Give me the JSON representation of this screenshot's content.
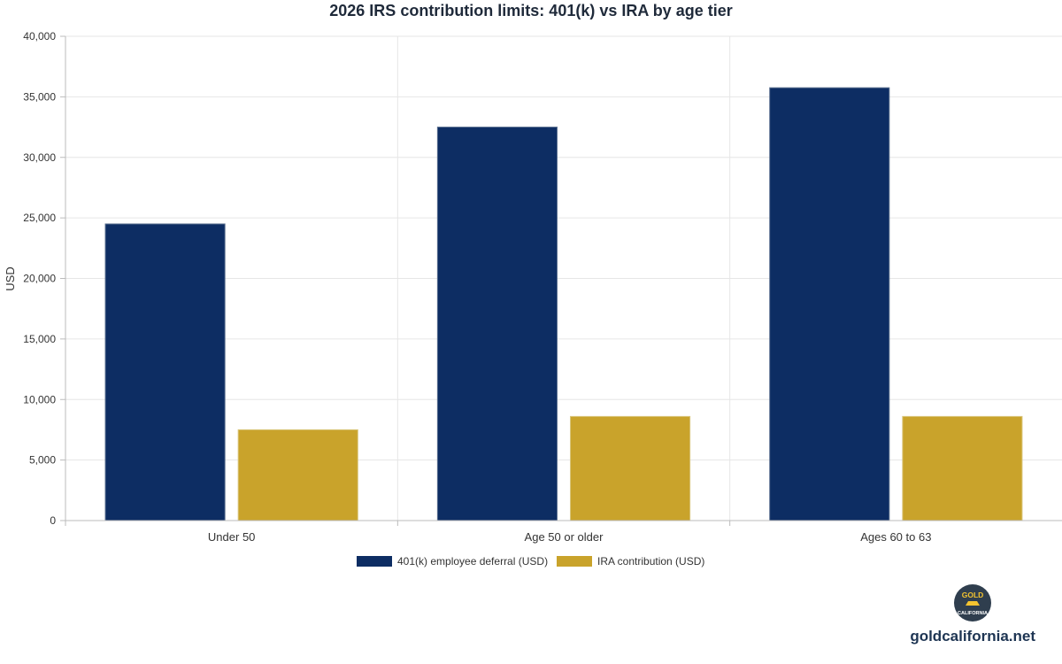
{
  "chart_data": {
    "type": "bar",
    "title": "2026 IRS contribution limits: 401(k) vs IRA by age tier",
    "xlabel": "",
    "ylabel": "USD",
    "categories": [
      "Under 50",
      "Age 50 or older",
      "Ages 60 to 63"
    ],
    "series": [
      {
        "name": "401(k) employee deferral (USD)",
        "values": [
          24500,
          32500,
          35750
        ],
        "color": "#0d2d63"
      },
      {
        "name": "IRA contribution (USD)",
        "values": [
          7500,
          8600,
          8600
        ],
        "color": "#c9a32b"
      }
    ],
    "ylim": [
      0,
      40000
    ],
    "yticks": [
      0,
      5000,
      10000,
      15000,
      20000,
      25000,
      30000,
      35000,
      40000
    ],
    "ytick_labels": [
      "0",
      "5,000",
      "10,000",
      "15,000",
      "20,000",
      "25,000",
      "30,000",
      "35,000",
      "40,000"
    ],
    "grid": true,
    "legend_position": "bottom-center"
  },
  "brand": {
    "site": "goldcalifornia.net",
    "logo_top": "GOLD",
    "logo_bottom": "CALIFORNIA",
    "logo_bg": "#2f3e4e",
    "logo_accent": "#f4c430"
  }
}
